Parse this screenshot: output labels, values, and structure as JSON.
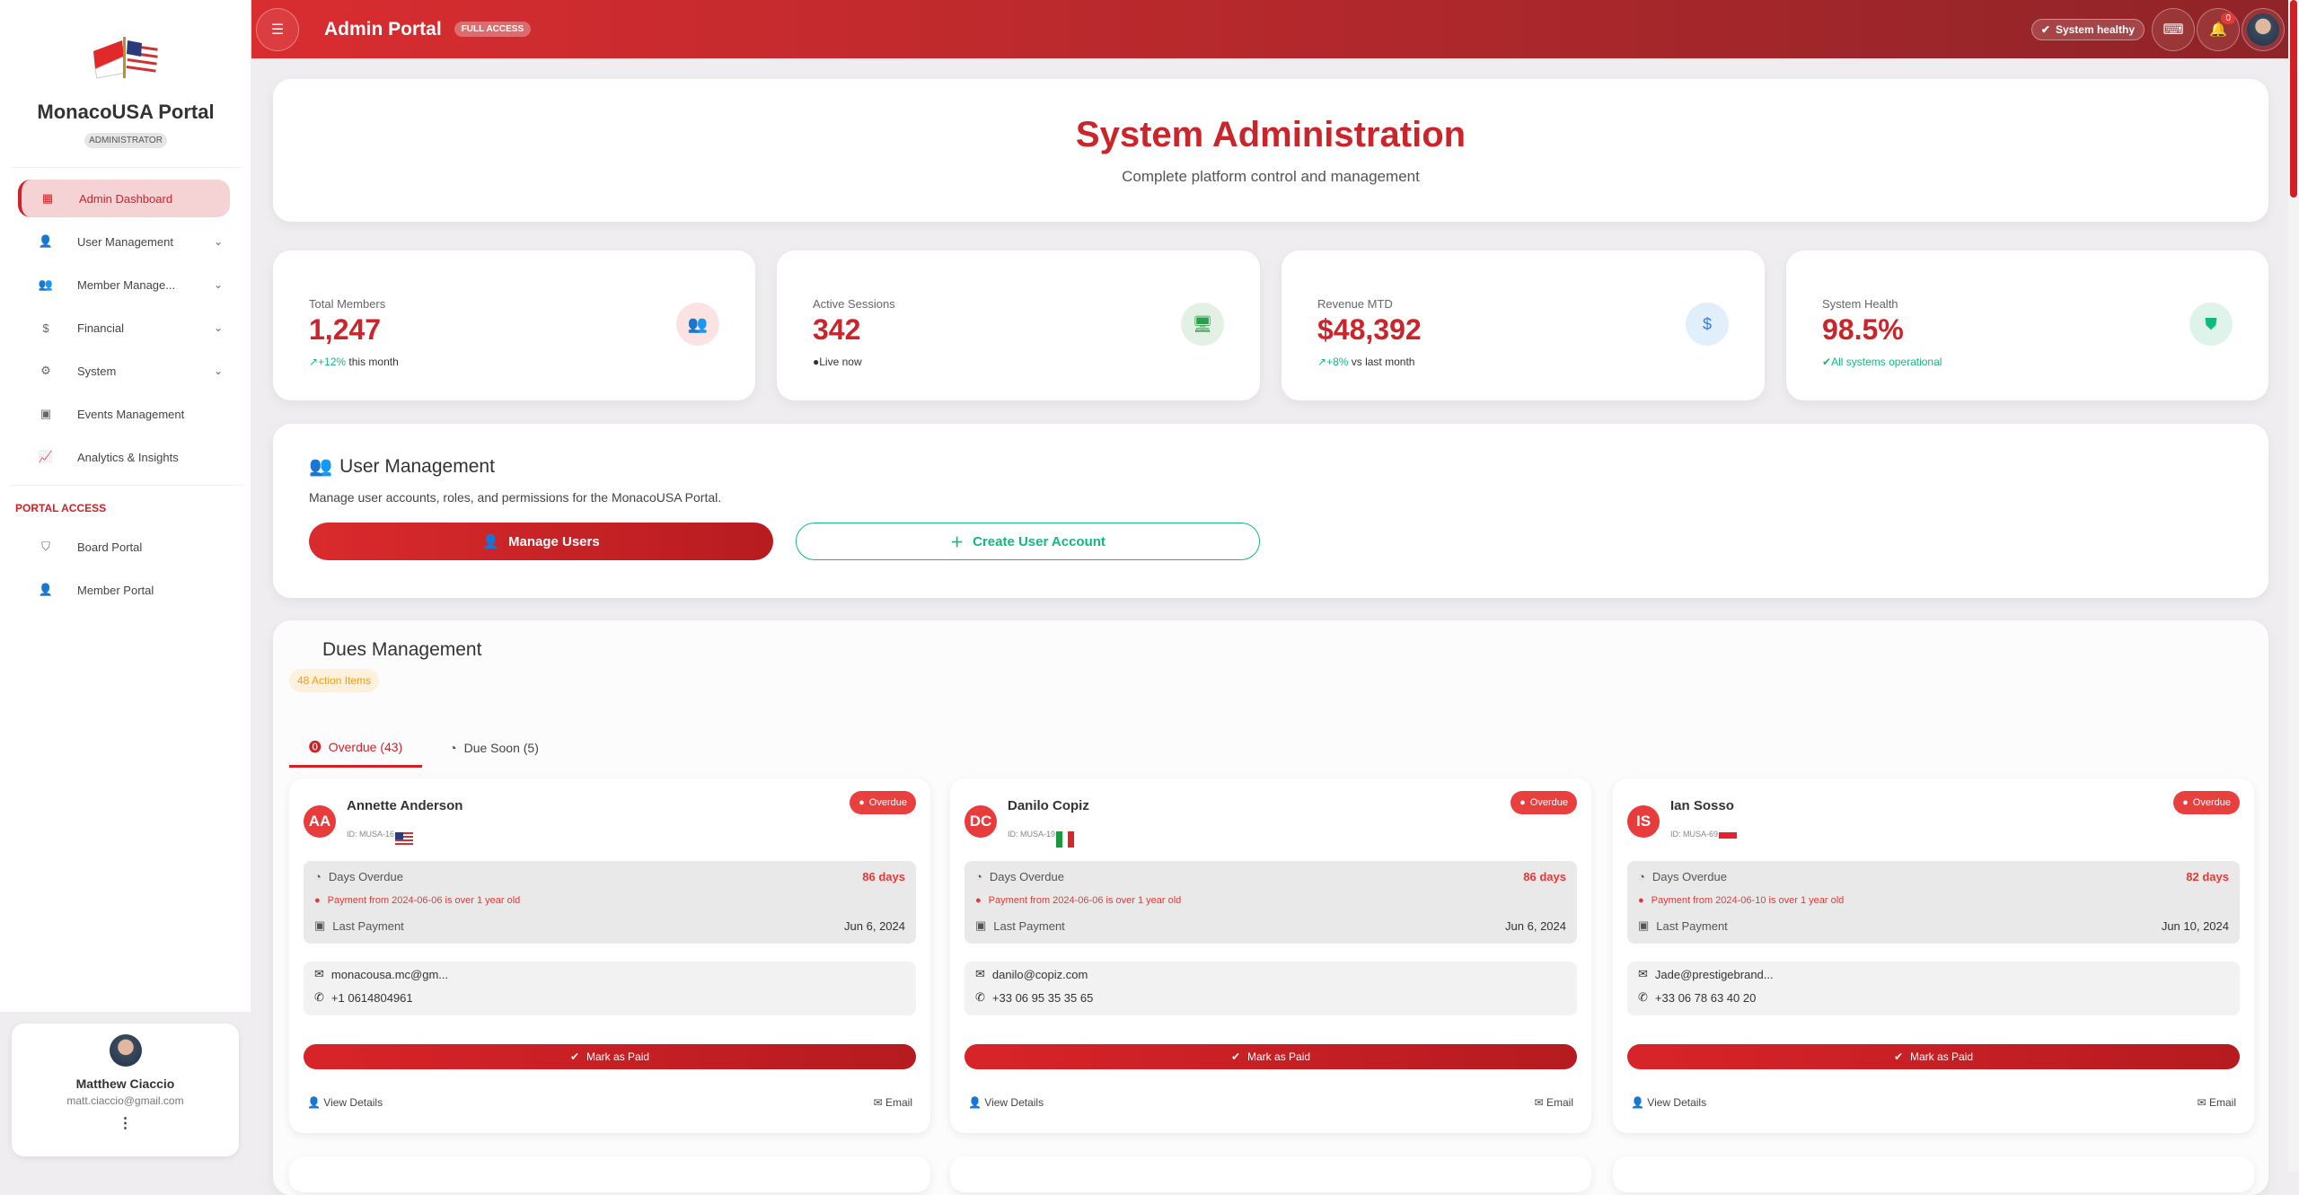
{
  "sidebar": {
    "brand": "MonacoUSA Portal",
    "role": "ADMINISTRATOR",
    "items": [
      {
        "label": "Admin Dashboard",
        "icon": "dashboard-icon"
      },
      {
        "label": "User Management",
        "icon": "user-gear-icon"
      },
      {
        "label": "Member Manage...",
        "icon": "group-icon"
      },
      {
        "label": "Financial",
        "icon": "dollar-icon"
      },
      {
        "label": "System",
        "icon": "gear-icon"
      },
      {
        "label": "Events Management",
        "icon": "calendar-icon"
      },
      {
        "label": "Analytics & Insights",
        "icon": "chart-line-icon"
      }
    ],
    "section": "PORTAL ACCESS",
    "portal": [
      {
        "label": "Board Portal",
        "icon": "shield-account-icon"
      },
      {
        "label": "Member Portal",
        "icon": "person-icon"
      }
    ],
    "user": {
      "name": "Matthew Ciaccio",
      "email": "matt.ciaccio@gmail.com"
    }
  },
  "topbar": {
    "title": "Admin Portal",
    "badge": "FULL ACCESS",
    "status": "System healthy",
    "notifications": "0"
  },
  "hero": {
    "title": "System Administration",
    "subtitle": "Complete platform control and management"
  },
  "stats": [
    {
      "label": "Total Members",
      "value": "1,247",
      "trend": "+12%",
      "sub": " this month"
    },
    {
      "label": "Active Sessions",
      "value": "342",
      "trend": "",
      "sub": "Live now"
    },
    {
      "label": "Revenue MTD",
      "value": "$48,392",
      "trend": "+8%",
      "sub": " vs last month"
    },
    {
      "label": "System Health",
      "value": "98.5%",
      "trend": "",
      "sub": "All systems operational"
    }
  ],
  "user_mgmt": {
    "title": "User Management",
    "desc": "Manage user accounts, roles, and permissions for the MonacoUSA Portal.",
    "manage": "Manage Users",
    "create": "Create User Account"
  },
  "dues": {
    "title": "Dues Management",
    "action_items": "48 Action Items",
    "tabs": [
      "Overdue (43)",
      "Due Soon (5)"
    ],
    "labels": {
      "days_overdue": "Days Overdue",
      "last_payment": "Last Payment",
      "mark_paid": "Mark as Paid",
      "view": "View Details",
      "email": "Email",
      "status": "Overdue"
    },
    "members": [
      {
        "initials": "AA",
        "name": "Annette Anderson",
        "id": "ID: MUSA-16",
        "days": "86 days",
        "warning": "Payment from 2024-06-06 is over 1 year old",
        "last": "Jun 6, 2024",
        "email": "monacousa.mc@gm...",
        "phone": "+1 0614804961"
      },
      {
        "initials": "DC",
        "name": "Danilo Copiz",
        "id": "ID: MUSA-19",
        "days": "86 days",
        "warning": "Payment from 2024-06-06 is over 1 year old",
        "last": "Jun 6, 2024",
        "email": "danilo@copiz.com",
        "phone": "+33 06 95 35 35 65"
      },
      {
        "initials": "IS",
        "name": "Ian Sosso",
        "id": "ID: MUSA-69",
        "days": "82 days",
        "warning": "Payment from 2024-06-10 is over 1 year old",
        "last": "Jun 10, 2024",
        "email": "Jade@prestigebrand...",
        "phone": "+33 06 78 63 40 20"
      }
    ]
  },
  "colors": {
    "accent": "#d32027",
    "success": "#10b981",
    "warning": "#f59e0b"
  }
}
